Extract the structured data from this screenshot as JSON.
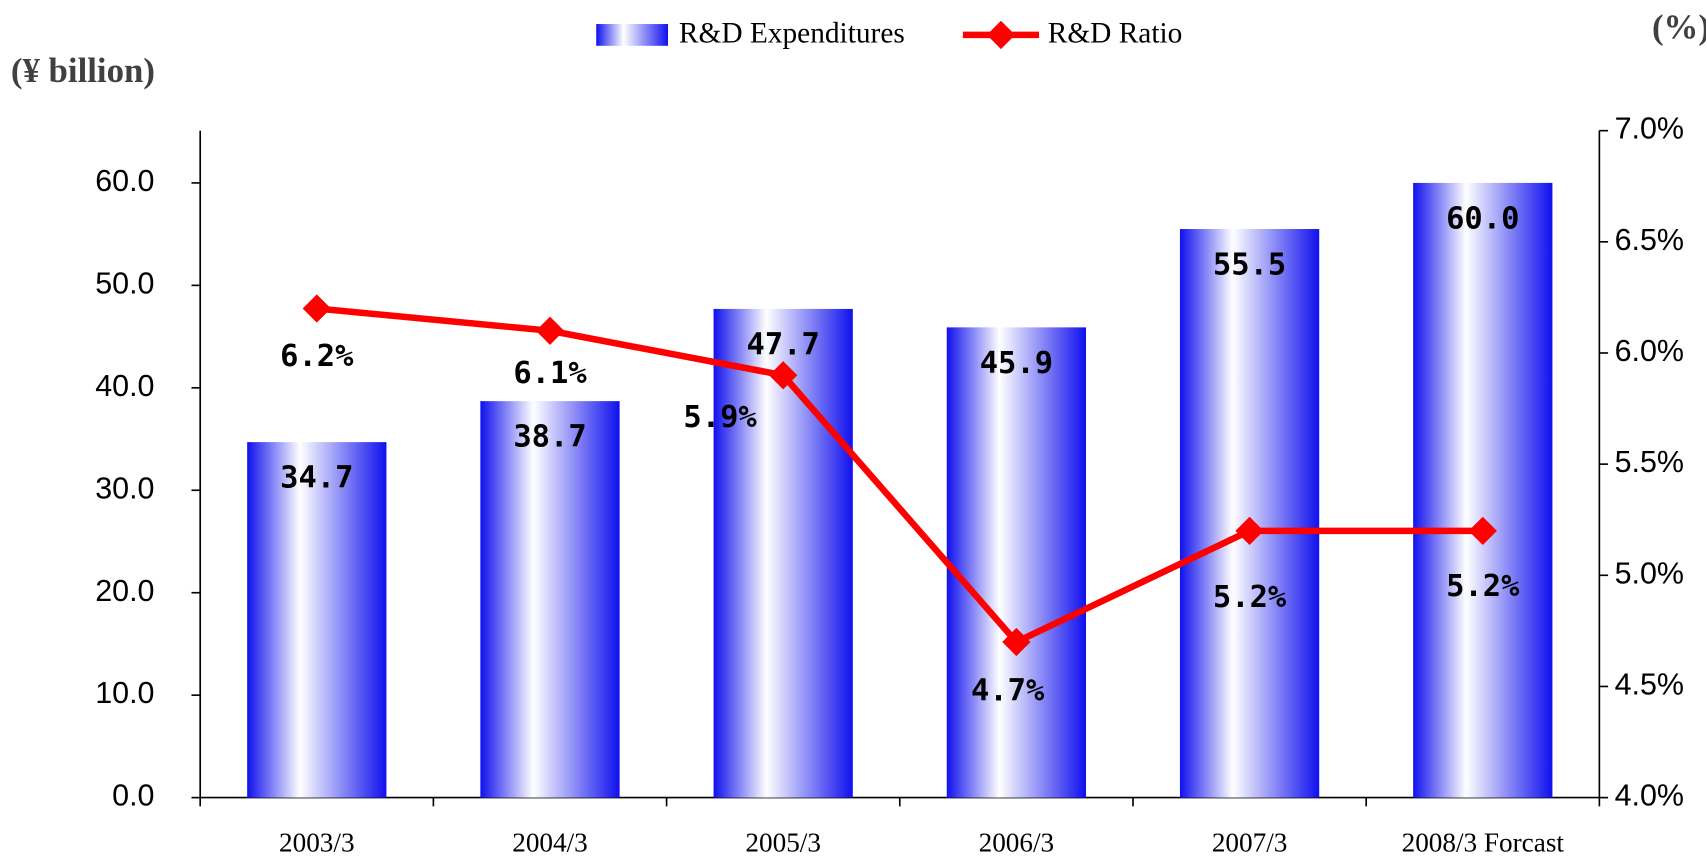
{
  "chart_data": {
    "type": "bar-line",
    "y_label": "(¥ billion)",
    "y2_label": "(%)",
    "categories": [
      "2003/3",
      "2004/3",
      "2005/3",
      "2006/3",
      "2007/3",
      "2008/3 Forcast"
    ],
    "series": [
      {
        "name": "R&D Expenditures",
        "type": "bar",
        "color": "#0000ee",
        "values": [
          34.7,
          38.7,
          47.7,
          45.9,
          55.5,
          60.0
        ],
        "value_labels": [
          "34.7",
          "38.7",
          "47.7",
          "45.9",
          "55.5",
          "60.0"
        ]
      },
      {
        "name": "R&D Ratio",
        "type": "line",
        "axis": "y2",
        "color": "#ff0000",
        "values": [
          6.2,
          6.1,
          5.9,
          4.7,
          5.2,
          5.2
        ],
        "value_labels": [
          "6.2%",
          "6.1%",
          "5.9%",
          "4.7%",
          "5.2%",
          "5.2%"
        ]
      }
    ],
    "ylim": [
      0,
      65.1
    ],
    "yticks": [
      {
        "value": 0,
        "label": "0.0"
      },
      {
        "value": 10,
        "label": "10.0"
      },
      {
        "value": 20,
        "label": "20.0"
      },
      {
        "value": 30,
        "label": "30.0"
      },
      {
        "value": 40,
        "label": "40.0"
      },
      {
        "value": 50,
        "label": "50.0"
      },
      {
        "value": 60,
        "label": "60.0"
      }
    ],
    "y2lim": [
      4.0,
      7.0
    ],
    "y2ticks": [
      {
        "value": 4.0,
        "label": "4.0%"
      },
      {
        "value": 4.5,
        "label": "4.5%"
      },
      {
        "value": 5.0,
        "label": "5.0%"
      },
      {
        "value": 5.5,
        "label": "5.5%"
      },
      {
        "value": 6.0,
        "label": "6.0%"
      },
      {
        "value": 6.5,
        "label": "6.5%"
      },
      {
        "value": 7.0,
        "label": "7.0%"
      }
    ],
    "legend": "top"
  }
}
